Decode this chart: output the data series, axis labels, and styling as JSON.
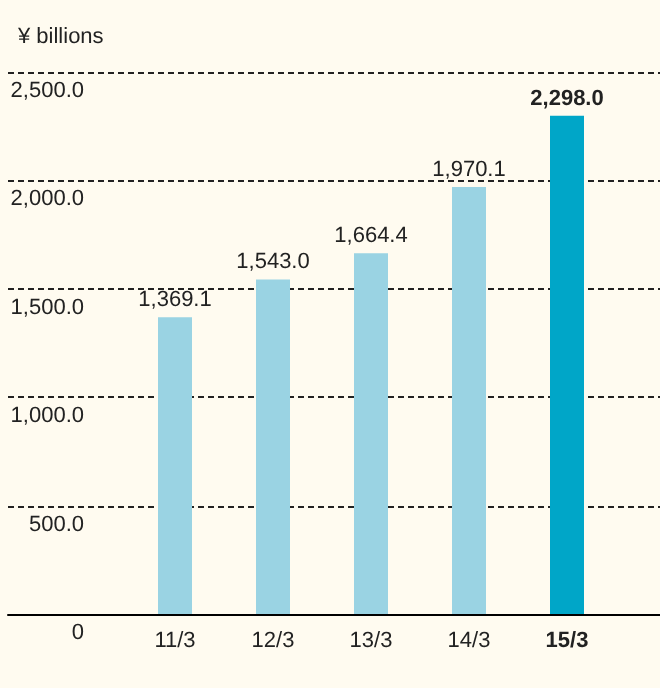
{
  "chart_data": {
    "type": "bar",
    "ylabel": "¥ billions",
    "categories": [
      "11/3",
      "12/3",
      "13/3",
      "14/3",
      "15/3"
    ],
    "values": [
      1369.1,
      1543.0,
      1664.4,
      1970.1,
      2298.0
    ],
    "colors": [
      "#9ad3e3",
      "#9ad3e3",
      "#9ad3e3",
      "#9ad3e3",
      "#00a6c8"
    ],
    "ylim": [
      0,
      2500
    ],
    "yticks": [
      0,
      {
        "value": 500,
        "label": "500.0"
      },
      {
        "value": 1000,
        "label": "1,000.0"
      },
      {
        "value": 1500,
        "label": "1,500.0"
      },
      {
        "value": 2000,
        "label": "2,000.0"
      },
      {
        "value": 2500,
        "label": "2,500.0"
      }
    ],
    "value_labels": [
      "1,369.1",
      "1,543.0",
      "1,664.4",
      "1,970.1",
      "2,298.0"
    ],
    "grid": "y"
  }
}
